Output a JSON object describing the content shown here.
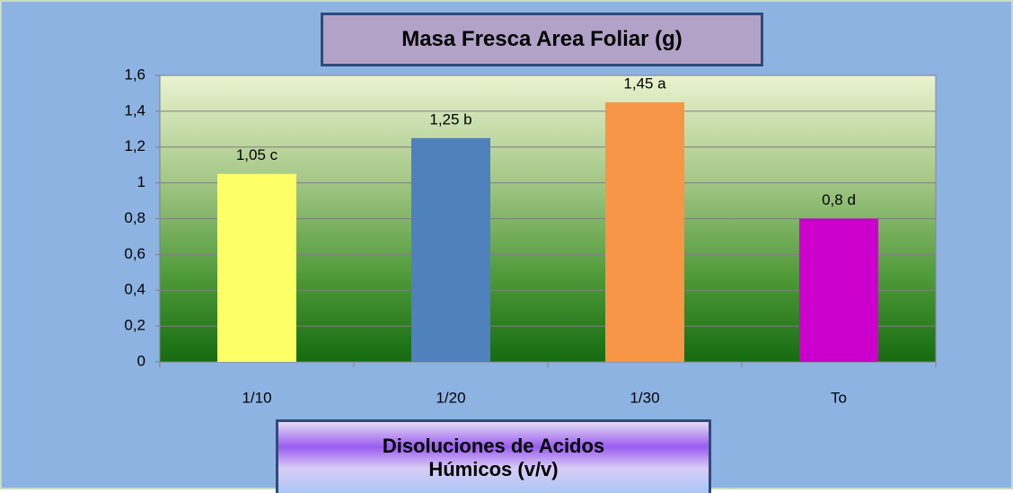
{
  "chart_data": {
    "type": "bar",
    "title": "Masa Fresca Area Foliar (g)",
    "x_label": "Disoluciones de Acidos Húmicos (v/v)",
    "categories": [
      "1/10",
      "1/20",
      "1/30",
      "To"
    ],
    "values": [
      1.05,
      1.25,
      1.45,
      0.8
    ],
    "value_labels": [
      "1,05 c",
      "1,25 b",
      "1,45 a",
      "0,8 d"
    ],
    "colors": [
      "#ffff66",
      "#4f81bd",
      "#f79646",
      "#cc00cc"
    ],
    "ylim": [
      0,
      1.6
    ],
    "yticks": [
      0,
      {
        "value": 0.2,
        "label": "0,2"
      },
      {
        "value": 0.4,
        "label": "0,4"
      },
      {
        "value": 0.6,
        "label": "0,6"
      },
      {
        "value": 0.8,
        "label": "0,8"
      },
      1,
      {
        "value": 1.2,
        "label": "1,2"
      },
      {
        "value": 1.4,
        "label": "1,4"
      },
      {
        "value": 1.6,
        "label": "1,6"
      }
    ],
    "grid": true
  }
}
